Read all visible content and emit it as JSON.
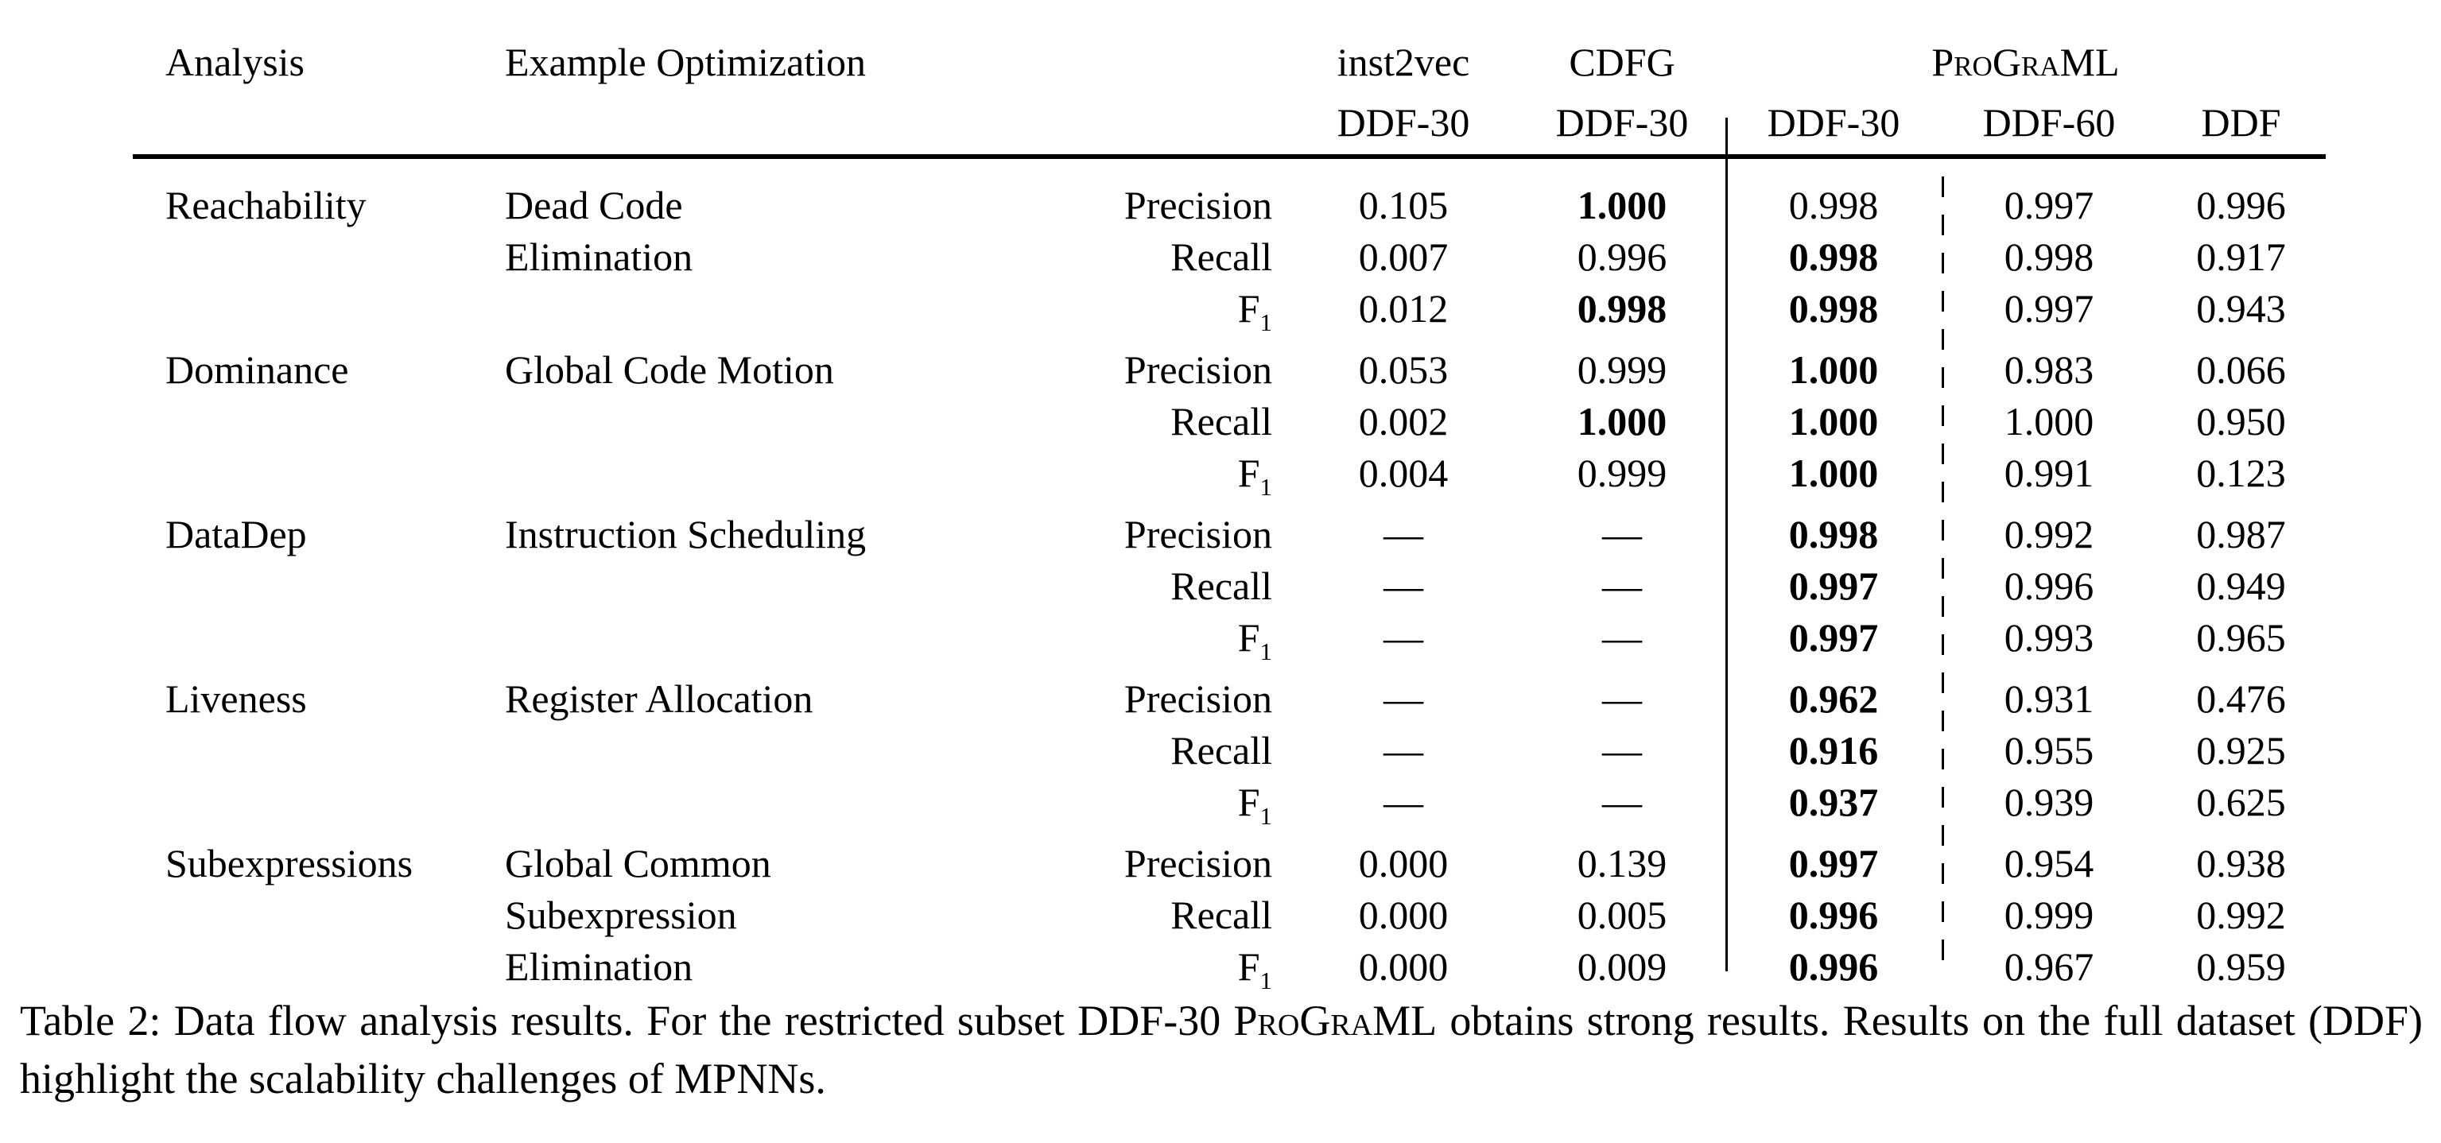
{
  "table": {
    "columns": {
      "analysis_header": "Analysis",
      "optimization_header": "Example Optimization",
      "groups": [
        {
          "title": "inst2vec",
          "small_caps": false,
          "subcols": [
            "DDF-30"
          ]
        },
        {
          "title": "CDFG",
          "small_caps": false,
          "subcols": [
            "DDF-30"
          ]
        },
        {
          "title": "ProGraML",
          "small_caps": true,
          "subcols": [
            "DDF-30",
            "DDF-60",
            "DDF"
          ]
        }
      ]
    },
    "body": [
      {
        "analysis": "Reachability",
        "optimization_lines": [
          "Dead Code",
          "Elimination"
        ],
        "metrics": [
          {
            "metric": "Precision",
            "metric_sub": false,
            "values": [
              "0.105",
              "1.000",
              "0.998",
              "0.997",
              "0.996"
            ],
            "bold": [
              false,
              true,
              false,
              false,
              false
            ]
          },
          {
            "metric": "Recall",
            "metric_sub": false,
            "values": [
              "0.007",
              "0.996",
              "0.998",
              "0.998",
              "0.917"
            ],
            "bold": [
              false,
              false,
              true,
              false,
              false
            ]
          },
          {
            "metric": "F1",
            "metric_sub": true,
            "values": [
              "0.012",
              "0.998",
              "0.998",
              "0.997",
              "0.943"
            ],
            "bold": [
              false,
              true,
              true,
              false,
              false
            ]
          }
        ]
      },
      {
        "analysis": "Dominance",
        "optimization_lines": [
          "Global Code Motion"
        ],
        "metrics": [
          {
            "metric": "Precision",
            "metric_sub": false,
            "values": [
              "0.053",
              "0.999",
              "1.000",
              "0.983",
              "0.066"
            ],
            "bold": [
              false,
              false,
              true,
              false,
              false
            ]
          },
          {
            "metric": "Recall",
            "metric_sub": false,
            "values": [
              "0.002",
              "1.000",
              "1.000",
              "1.000",
              "0.950"
            ],
            "bold": [
              false,
              true,
              true,
              false,
              false
            ]
          },
          {
            "metric": "F1",
            "metric_sub": true,
            "values": [
              "0.004",
              "0.999",
              "1.000",
              "0.991",
              "0.123"
            ],
            "bold": [
              false,
              false,
              true,
              false,
              false
            ]
          }
        ]
      },
      {
        "analysis": "DataDep",
        "optimization_lines": [
          "Instruction Scheduling"
        ],
        "metrics": [
          {
            "metric": "Precision",
            "metric_sub": false,
            "values": [
              "—",
              "—",
              "0.998",
              "0.992",
              "0.987"
            ],
            "bold": [
              false,
              false,
              true,
              false,
              false
            ]
          },
          {
            "metric": "Recall",
            "metric_sub": false,
            "values": [
              "—",
              "—",
              "0.997",
              "0.996",
              "0.949"
            ],
            "bold": [
              false,
              false,
              true,
              false,
              false
            ]
          },
          {
            "metric": "F1",
            "metric_sub": true,
            "values": [
              "—",
              "—",
              "0.997",
              "0.993",
              "0.965"
            ],
            "bold": [
              false,
              false,
              true,
              false,
              false
            ]
          }
        ]
      },
      {
        "analysis": "Liveness",
        "optimization_lines": [
          "Register Allocation"
        ],
        "metrics": [
          {
            "metric": "Precision",
            "metric_sub": false,
            "values": [
              "—",
              "—",
              "0.962",
              "0.931",
              "0.476"
            ],
            "bold": [
              false,
              false,
              true,
              false,
              false
            ]
          },
          {
            "metric": "Recall",
            "metric_sub": false,
            "values": [
              "—",
              "—",
              "0.916",
              "0.955",
              "0.925"
            ],
            "bold": [
              false,
              false,
              true,
              false,
              false
            ]
          },
          {
            "metric": "F1",
            "metric_sub": true,
            "values": [
              "—",
              "—",
              "0.937",
              "0.939",
              "0.625"
            ],
            "bold": [
              false,
              false,
              true,
              false,
              false
            ]
          }
        ]
      },
      {
        "analysis": "Subexpressions",
        "optimization_lines": [
          "Global Common",
          "Subexpression",
          "Elimination"
        ],
        "metrics": [
          {
            "metric": "Precision",
            "metric_sub": false,
            "values": [
              "0.000",
              "0.139",
              "0.997",
              "0.954",
              "0.938"
            ],
            "bold": [
              false,
              false,
              true,
              false,
              false
            ]
          },
          {
            "metric": "Recall",
            "metric_sub": false,
            "values": [
              "0.000",
              "0.005",
              "0.996",
              "0.999",
              "0.992"
            ],
            "bold": [
              false,
              false,
              true,
              false,
              false
            ]
          },
          {
            "metric": "F1",
            "metric_sub": true,
            "values": [
              "0.000",
              "0.009",
              "0.996",
              "0.967",
              "0.959"
            ],
            "bold": [
              false,
              false,
              true,
              false,
              false
            ]
          }
        ]
      }
    ]
  },
  "caption": {
    "before": "Table 2: Data flow analysis results. For the restricted subset DDF-30 ",
    "brand": "ProGraML",
    "after": " obtains strong results. Results on the full dataset (DDF) highlight the scalability challenges of MPNNs."
  }
}
